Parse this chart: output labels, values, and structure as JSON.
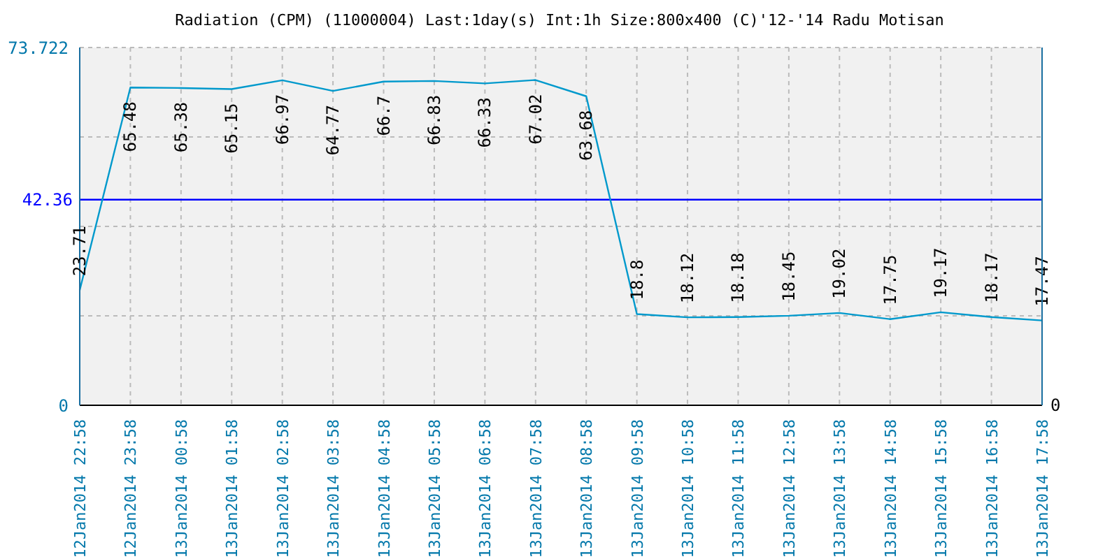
{
  "chart_data": {
    "type": "line",
    "title": "Radiation (CPM) (11000004) Last:1day(s) Int:1h Size:800x400 (C)'12-'14 Radu Motisan",
    "categories": [
      "12Jan2014 22:58",
      "12Jan2014 23:58",
      "13Jan2014 00:58",
      "13Jan2014 01:58",
      "13Jan2014 02:58",
      "13Jan2014 03:58",
      "13Jan2014 04:58",
      "13Jan2014 05:58",
      "13Jan2014 06:58",
      "13Jan2014 07:58",
      "13Jan2014 08:58",
      "13Jan2014 09:58",
      "13Jan2014 10:58",
      "13Jan2014 11:58",
      "13Jan2014 12:58",
      "13Jan2014 13:58",
      "13Jan2014 14:58",
      "13Jan2014 15:58",
      "13Jan2014 16:58",
      "13Jan2014 17:58"
    ],
    "series": [
      {
        "color": "#0099cc",
        "values": [
          23.71,
          65.48,
          65.38,
          65.15,
          66.97,
          64.77,
          66.7,
          66.83,
          66.33,
          67.02,
          63.68,
          18.8,
          18.12,
          18.18,
          18.45,
          19.02,
          17.75,
          19.17,
          18.17,
          17.47
        ]
      }
    ],
    "ylim": [
      0,
      73.722
    ],
    "yticks": [
      0,
      {
        "value": 18.4305,
        "label": null
      },
      {
        "value": 36.861,
        "label": null
      },
      {
        "value": 55.2915,
        "label": null
      },
      73.722
    ],
    "annotations": [
      "0"
    ],
    "ref_lines": [
      {
        "axis": "y",
        "value": 42.36,
        "label": "42.36",
        "color": "#0000ff"
      }
    ],
    "data_labels": true,
    "grid": true
  }
}
